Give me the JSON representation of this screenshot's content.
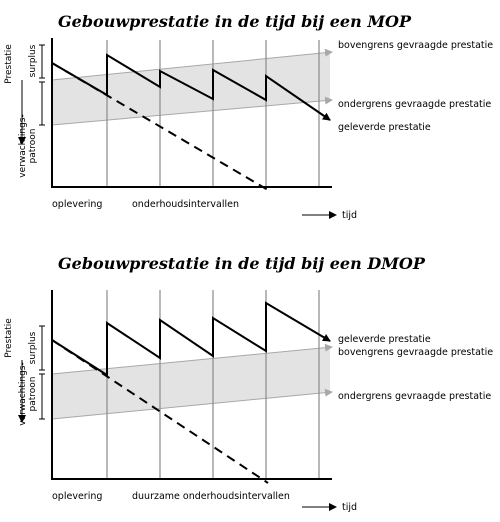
{
  "diagrams": [
    {
      "title": "Gebouwprestatie in de tijd bij een MOP",
      "y_axis_label": "Prestatie",
      "surplus_label": "surplus",
      "pattern_label_1": "verwachtings-",
      "pattern_label_2": "patroon",
      "band_upper_label": "bovengrens gevraagde prestatie",
      "band_lower_label": "ondergrens gevraagde prestatie",
      "performance_label": "geleverde prestatie",
      "x_label_start": "oplevering",
      "x_label_intervals": "onderhoudsintervallen",
      "time_label": "tijd"
    },
    {
      "title": "Gebouwprestatie in de tijd bij een DMOP",
      "y_axis_label": "Prestatie",
      "surplus_label": "surplus",
      "pattern_label_1": "verwachtings-",
      "pattern_label_2": "patroon",
      "performance_label": "geleverde prestatie",
      "band_upper_label": "bovengrens gevraagde prestatie",
      "band_lower_label": "ondergrens gevraagde prestatie",
      "x_label_start": "oplevering",
      "x_label_intervals": "duurzame onderhoudsintervallen",
      "time_label": "tijd"
    }
  ],
  "colors": {
    "band_fill": "#e3e3e3",
    "band_edge": "#a8a8a8",
    "grid": "#8a8a8a",
    "line": "#000000"
  }
}
